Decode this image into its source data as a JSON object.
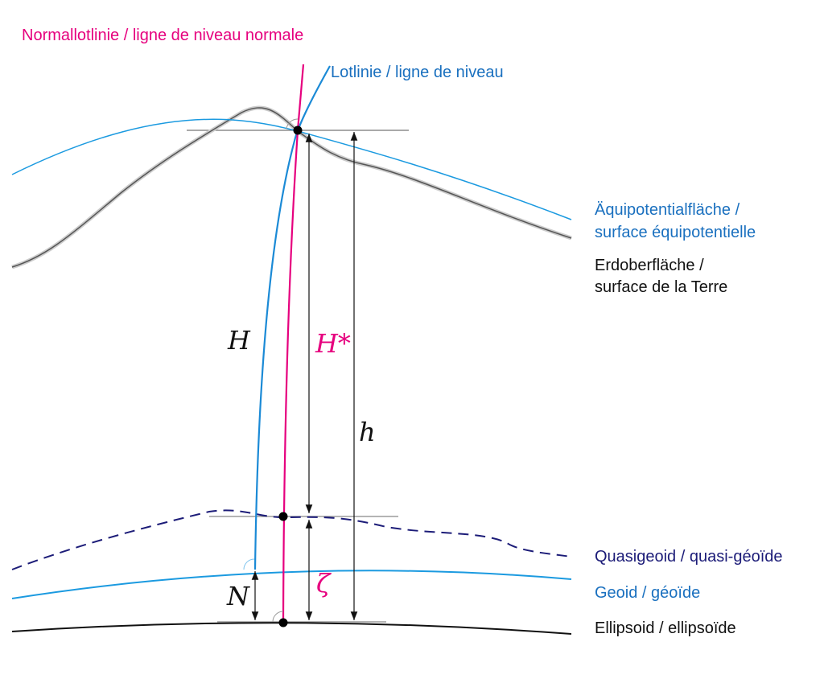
{
  "colors": {
    "normal": "#e6007e",
    "plumb": "#1b8ad6",
    "label_blue": "#1a70bf",
    "quasigeoid": "#1c1c78",
    "ellipsoid": "#111111",
    "surface": "#555555"
  },
  "labels": {
    "normal_plumb": "Normallotlinie / ligne de niveau normale",
    "plumb": "Lotlinie / ligne de niveau",
    "equipotential_1": "Äquipotentialfläche /",
    "equipotential_2": "surface équipotentielle",
    "earth_1": "Erdoberfläche /",
    "earth_2": "surface de la Terre",
    "quasigeoid": "Quasigeoid / quasi-géoïde",
    "geoid": "Geoid / géoïde",
    "ellipsoid": "Ellipsoid / ellipsoïde"
  },
  "symbols": {
    "H": "H",
    "H_star": "H*",
    "h": "h",
    "N": "N",
    "zeta": "ζ"
  }
}
